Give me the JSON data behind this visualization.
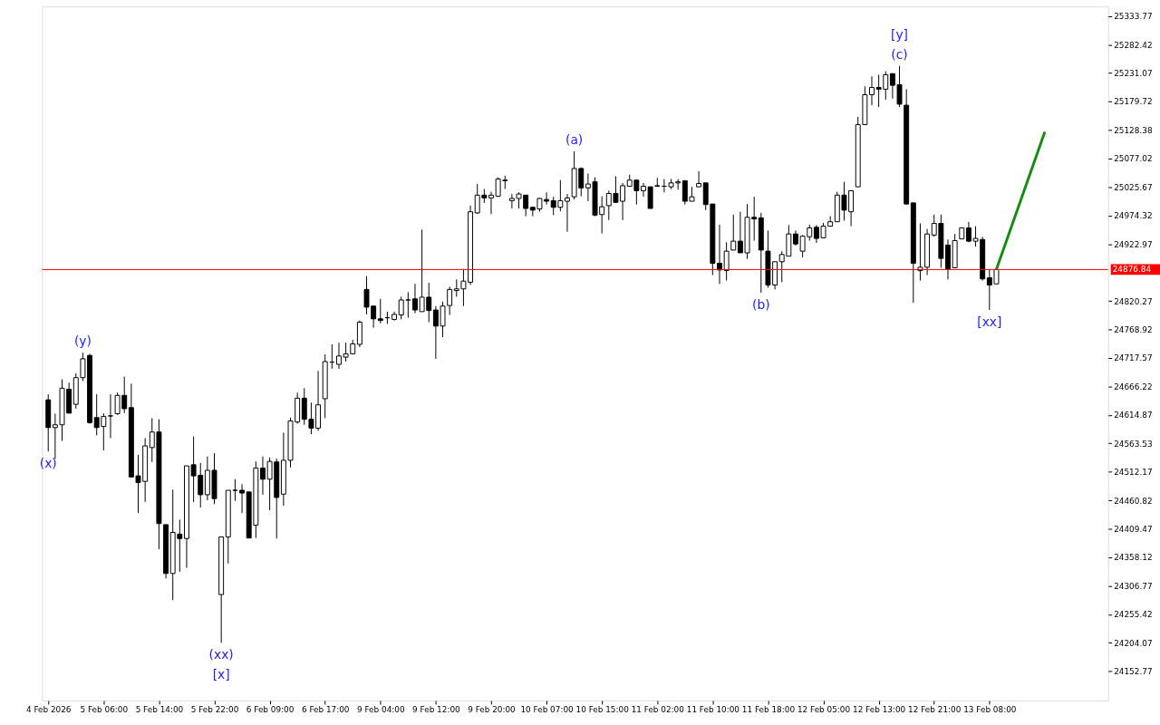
{
  "chart_data": {
    "type": "candlestick",
    "categories": [
      "4 Feb 2026",
      null,
      null,
      null,
      null,
      null,
      null,
      null,
      "5 Feb 06:00",
      null,
      null,
      null,
      null,
      null,
      null,
      null,
      "5 Feb 14:00",
      null,
      null,
      null,
      null,
      null,
      null,
      null,
      "5 Feb 22:00",
      null,
      null,
      null,
      null,
      null,
      null,
      null,
      "6 Feb 09:00",
      null,
      null,
      null,
      null,
      null,
      null,
      null,
      "6 Feb 17:00",
      null,
      null,
      null,
      null,
      null,
      null,
      null,
      "9 Feb 04:00",
      null,
      null,
      null,
      null,
      null,
      null,
      null,
      "9 Feb 12:00",
      null,
      null,
      null,
      null,
      null,
      null,
      null,
      "9 Feb 20:00",
      null,
      null,
      null,
      null,
      null,
      null,
      null,
      "10 Feb 07:00",
      null,
      null,
      null,
      null,
      null,
      null,
      null,
      "10 Feb 15:00",
      null,
      null,
      null,
      null,
      null,
      null,
      null,
      "11 Feb 02:00",
      null,
      null,
      null,
      null,
      null,
      null,
      null,
      "11 Feb 10:00",
      null,
      null,
      null,
      null,
      null,
      null,
      null,
      "11 Feb 18:00",
      null,
      null,
      null,
      null,
      null,
      null,
      null,
      "12 Feb 05:00",
      null,
      null,
      null,
      null,
      null,
      null,
      null,
      "12 Feb 13:00",
      null,
      null,
      null,
      null,
      null,
      null,
      null,
      "12 Feb 21:00",
      null,
      null,
      null,
      null,
      null,
      null,
      null,
      "13 Feb 08:00",
      null,
      null,
      null,
      null,
      null,
      null,
      null,
      null,
      null,
      null,
      null,
      null,
      null,
      null,
      null,
      null
    ],
    "ohlc": [
      [
        24642,
        24652,
        24549,
        24592
      ],
      [
        24592,
        24617,
        24536,
        24597
      ],
      [
        24597,
        24679,
        24568,
        24663
      ],
      [
        24661,
        24673,
        24618,
        24618
      ],
      [
        24634,
        24690,
        24626,
        24682
      ],
      [
        24682,
        24727,
        24676,
        24716
      ],
      [
        24722,
        24725,
        24599,
        24601
      ],
      [
        24610,
        24652,
        24578,
        24592
      ],
      [
        24594,
        24618,
        24551,
        24612
      ],
      [
        24613,
        24652,
        24573,
        24613
      ],
      [
        24617,
        24655,
        24615,
        24650
      ],
      [
        24650,
        24684,
        24618,
        24626
      ],
      [
        24628,
        24671,
        24503,
        24503
      ],
      [
        24505,
        24543,
        24438,
        24493
      ],
      [
        24495,
        24573,
        24458,
        24559
      ],
      [
        24556,
        24609,
        24530,
        24584
      ],
      [
        24584,
        24607,
        24373,
        24419
      ],
      [
        24417,
        24417,
        24320,
        24329
      ],
      [
        24329,
        24480,
        24281,
        24403
      ],
      [
        24400,
        24426,
        24332,
        24392
      ],
      [
        24392,
        24523,
        24339,
        24523
      ],
      [
        24525,
        24576,
        24458,
        24505
      ],
      [
        24506,
        24528,
        24448,
        24471
      ],
      [
        24471,
        24540,
        24461,
        24515
      ],
      [
        24515,
        24546,
        24454,
        24464
      ],
      [
        24291,
        24395,
        24204,
        24395
      ],
      [
        24395,
        24479,
        24347,
        24479
      ],
      [
        24479,
        24499,
        24460,
        24479
      ],
      [
        24479,
        24490,
        24438,
        24474
      ],
      [
        24476,
        24476,
        24393,
        24393
      ],
      [
        24416,
        24531,
        24393,
        24519
      ],
      [
        24519,
        24540,
        24471,
        24499
      ],
      [
        24499,
        24538,
        24443,
        24531
      ],
      [
        24530,
        24536,
        24392,
        24466
      ],
      [
        24472,
        24583,
        24451,
        24533
      ],
      [
        24533,
        24610,
        24520,
        24604
      ],
      [
        24602,
        24655,
        24599,
        24645
      ],
      [
        24645,
        24663,
        24597,
        24607
      ],
      [
        24607,
        24637,
        24580,
        24591
      ],
      [
        24591,
        24694,
        24586,
        24633
      ],
      [
        24644,
        24724,
        24609,
        24711
      ],
      [
        24710,
        24742,
        24698,
        24710
      ],
      [
        24706,
        24745,
        24698,
        24721
      ],
      [
        24719,
        24745,
        24711,
        24725
      ],
      [
        24725,
        24750,
        24724,
        24743
      ],
      [
        24742,
        24785,
        24737,
        24782
      ],
      [
        24841,
        24865,
        24796,
        24809
      ],
      [
        24811,
        24811,
        24772,
        24788
      ],
      [
        24788,
        24824,
        24780,
        24785
      ],
      [
        24790,
        24801,
        24779,
        24790
      ],
      [
        24787,
        24801,
        24785,
        24796
      ],
      [
        24795,
        24828,
        24787,
        24822
      ],
      [
        24822,
        24836,
        24790,
        24822
      ],
      [
        24824,
        24851,
        24798,
        24804
      ],
      [
        24801,
        24949,
        24801,
        24827
      ],
      [
        24827,
        24853,
        24782,
        24803
      ],
      [
        24804,
        24811,
        24716,
        24775
      ],
      [
        24775,
        24819,
        24755,
        24811
      ],
      [
        24812,
        24846,
        24795,
        24841
      ],
      [
        24839,
        24859,
        24828,
        24842
      ],
      [
        24842,
        24878,
        24811,
        24856
      ],
      [
        24854,
        24992,
        24849,
        24981
      ],
      [
        24979,
        25031,
        24977,
        25011
      ],
      [
        25011,
        25022,
        24997,
        25006
      ],
      [
        25006,
        25017,
        24977,
        25011
      ],
      [
        25009,
        25043,
        25008,
        25040
      ],
      [
        25038,
        25046,
        25022,
        25037
      ],
      [
        25001,
        25013,
        24987,
        25005
      ],
      [
        25005,
        25016,
        24987,
        25013
      ],
      [
        25011,
        25011,
        24973,
        24987
      ],
      [
        24989,
        24990,
        24973,
        24984
      ],
      [
        24986,
        25006,
        24981,
        25005
      ],
      [
        25003,
        25016,
        24994,
        25000
      ],
      [
        25001,
        25008,
        24975,
        24989
      ],
      [
        24989,
        25038,
        24982,
        25001
      ],
      [
        25000,
        25013,
        24945,
        25006
      ],
      [
        25008,
        25090,
        25003,
        25059
      ],
      [
        25059,
        25061,
        25009,
        25024
      ],
      [
        25024,
        25050,
        25000,
        25031
      ],
      [
        25035,
        25043,
        24973,
        24975
      ],
      [
        24976,
        25009,
        24942,
        24990
      ],
      [
        24992,
        25019,
        24966,
        25014
      ],
      [
        25014,
        25045,
        24997,
        24998
      ],
      [
        25000,
        25033,
        24966,
        25028
      ],
      [
        25027,
        25048,
        25026,
        25038
      ],
      [
        25038,
        25038,
        24994,
        25019
      ],
      [
        25019,
        25033,
        25008,
        25027
      ],
      [
        25026,
        25026,
        24987,
        24987
      ],
      [
        25028,
        25042,
        25027,
        25027
      ],
      [
        25027,
        25040,
        25016,
        25027
      ],
      [
        25026,
        25040,
        25022,
        25033
      ],
      [
        25033,
        25040,
        25021,
        25035
      ],
      [
        25037,
        25037,
        24994,
        25000
      ],
      [
        25000,
        25026,
        25000,
        25008
      ],
      [
        25026,
        25054,
        25026,
        25032
      ],
      [
        25033,
        25033,
        24984,
        24994
      ],
      [
        24995,
        24995,
        24867,
        24888
      ],
      [
        24888,
        24958,
        24851,
        24876
      ],
      [
        24875,
        24926,
        24857,
        24910
      ],
      [
        24912,
        24976,
        24912,
        24928
      ],
      [
        24928,
        24981,
        24907,
        24907
      ],
      [
        24907,
        24995,
        24896,
        24971
      ],
      [
        24971,
        25008,
        24929,
        24968
      ],
      [
        24970,
        24979,
        24835,
        24912
      ],
      [
        24910,
        24947,
        24844,
        24849
      ],
      [
        24849,
        24891,
        24841,
        24891
      ],
      [
        24891,
        24910,
        24854,
        24904
      ],
      [
        24901,
        24957,
        24901,
        24941
      ],
      [
        24941,
        24947,
        24920,
        24923
      ],
      [
        24910,
        24939,
        24899,
        24937
      ],
      [
        24936,
        24958,
        24929,
        24952
      ],
      [
        24953,
        24957,
        24925,
        24933
      ],
      [
        24934,
        24961,
        24934,
        24955
      ],
      [
        24955,
        24973,
        24955,
        24963
      ],
      [
        24963,
        25017,
        24963,
        25011
      ],
      [
        25011,
        25035,
        24965,
        24984
      ],
      [
        24981,
        25019,
        24955,
        25019
      ],
      [
        25026,
        25152,
        25026,
        25138
      ],
      [
        25138,
        25207,
        25138,
        25192
      ],
      [
        25192,
        25225,
        25173,
        25205
      ],
      [
        25205,
        25228,
        25170,
        25202
      ],
      [
        25202,
        25234,
        25183,
        25228
      ],
      [
        25230,
        25230,
        25185,
        25209
      ],
      [
        25210,
        25244,
        25170,
        25175
      ],
      [
        25173,
        25202,
        24994,
        24995
      ],
      [
        24997,
        24997,
        24817,
        24888
      ],
      [
        24875,
        24960,
        24857,
        24881
      ],
      [
        24881,
        24950,
        24867,
        24941
      ],
      [
        24939,
        24976,
        24936,
        24960
      ],
      [
        24960,
        24976,
        24880,
        24897
      ],
      [
        24921,
        24931,
        24859,
        24878
      ],
      [
        24880,
        24941,
        24880,
        24929
      ],
      [
        24932,
        24953,
        24932,
        24952
      ],
      [
        24952,
        24963,
        24926,
        24928
      ],
      [
        24928,
        24955,
        24918,
        24933
      ],
      [
        24931,
        24936,
        24857,
        24860
      ],
      [
        24862,
        24878,
        24804,
        24849
      ],
      [
        24851,
        24877,
        24851,
        24877
      ],
      null,
      null,
      null,
      null,
      null,
      null,
      null,
      null,
      null,
      null,
      null,
      null,
      null,
      null,
      null
    ],
    "series": [
      {
        "type": "line",
        "color": "#158a15",
        "values": [
          null,
          null,
          null,
          null,
          null,
          null,
          null,
          null,
          null,
          null,
          null,
          null,
          null,
          null,
          null,
          null,
          null,
          null,
          null,
          null,
          null,
          null,
          null,
          null,
          null,
          null,
          null,
          null,
          null,
          null,
          null,
          null,
          null,
          null,
          null,
          null,
          null,
          null,
          null,
          null,
          null,
          null,
          null,
          null,
          null,
          null,
          null,
          null,
          null,
          null,
          null,
          null,
          null,
          null,
          null,
          null,
          null,
          null,
          null,
          null,
          null,
          null,
          null,
          null,
          null,
          null,
          null,
          null,
          null,
          null,
          null,
          null,
          null,
          null,
          null,
          null,
          null,
          null,
          null,
          null,
          null,
          null,
          null,
          null,
          null,
          null,
          null,
          null,
          null,
          null,
          null,
          null,
          null,
          null,
          null,
          null,
          null,
          null,
          null,
          null,
          null,
          null,
          null,
          null,
          null,
          null,
          null,
          null,
          null,
          null,
          null,
          null,
          null,
          null,
          null,
          null,
          null,
          null,
          null,
          null,
          null,
          null,
          null,
          null,
          null,
          null,
          null,
          null,
          null,
          null,
          null,
          null,
          null,
          null,
          null,
          null,
          null,
          24877,
          null,
          null,
          null,
          null,
          null,
          null,
          25125,
          null,
          null,
          null,
          null,
          null,
          null,
          null,
          null
        ]
      }
    ],
    "ylim": [
      24100,
      25351
    ],
    "yticks": [
      24152.77,
      24204.07,
      24255.42,
      24306.77,
      24358.12,
      24409.47,
      24460.82,
      24512.17,
      24563.53,
      24614.87,
      24666.22,
      24717.57,
      24768.92,
      24820.27,
      24922.97,
      24974.32,
      25025.67,
      25077.02,
      25128.38,
      25179.72,
      25231.07,
      25282.42,
      25333.77
    ],
    "ref_lines": [
      {
        "axis": "y",
        "value": 24876.84,
        "label": "24876.84",
        "color": "#ff0000"
      }
    ],
    "annotations": [
      {
        "text": "(x)",
        "y": 24549
      },
      {
        "text": "(y)",
        "y": 24727
      },
      {
        "text": "(xx)",
        "y": 24204
      },
      {
        "text": "[x]",
        "y": 24204
      },
      {
        "text": "(a)",
        "y": 25090
      },
      {
        "text": "(b)",
        "y": 24835
      },
      {
        "text": "(c)",
        "y": 25244
      },
      {
        "text": "[y]",
        "y": 25244
      },
      {
        "text": "[xx]",
        "y": 24804
      }
    ],
    "grid": false
  }
}
